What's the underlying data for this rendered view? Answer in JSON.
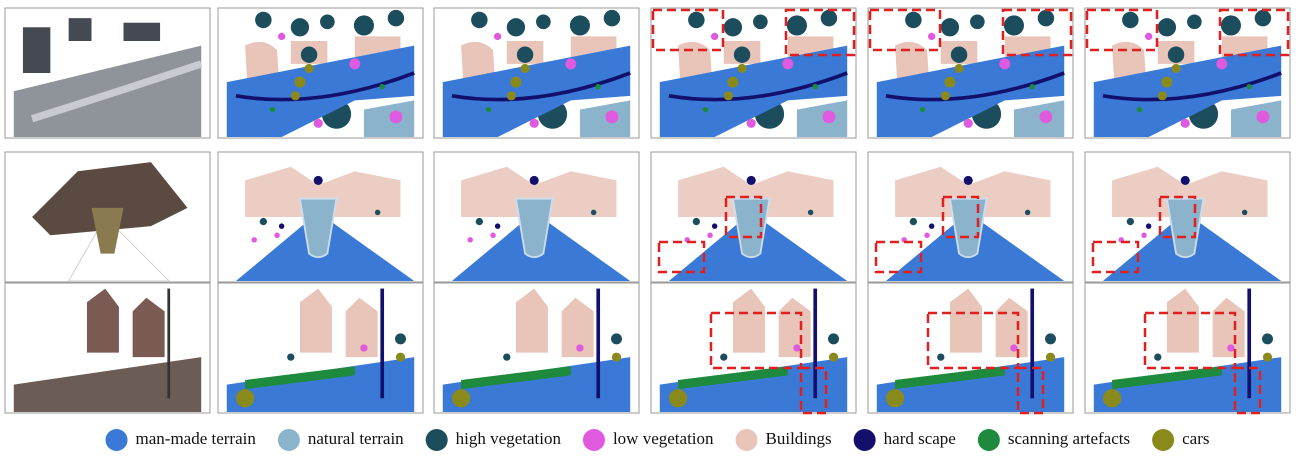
{
  "legend": [
    {
      "label": "man-made terrain",
      "color": "#3a7ad6"
    },
    {
      "label": "natural terrain",
      "color": "#8bb3cb"
    },
    {
      "label": "high vegetation",
      "color": "#1c4d5d"
    },
    {
      "label": "low vegetation",
      "color": "#e05ae0"
    },
    {
      "label": "Buildings",
      "color": "#e8c4b9"
    },
    {
      "label": "hard scape",
      "color": "#12106c"
    },
    {
      "label": "scanning artefacts",
      "color": "#1e8a3d"
    },
    {
      "label": "cars",
      "color": "#8a8a1c"
    }
  ]
}
